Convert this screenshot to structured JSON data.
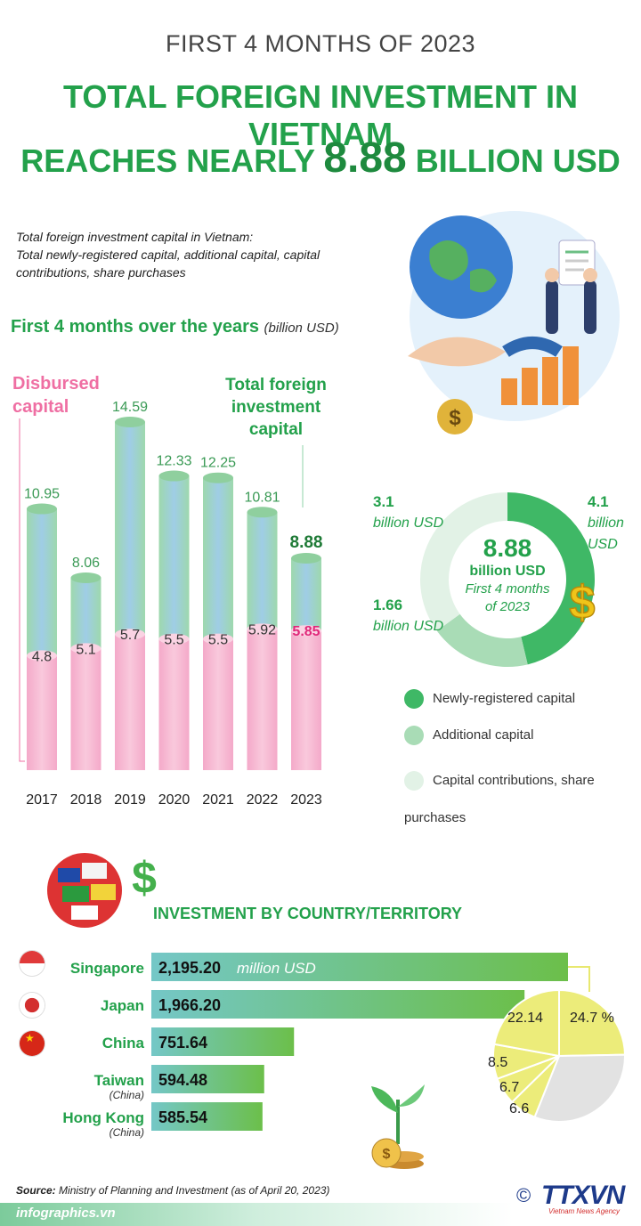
{
  "header": {
    "kicker": "FIRST 4 MONTHS OF 2023",
    "line1": "TOTAL FOREIGN INVESTMENT IN VIETNAM",
    "line2_pre": "REACHES NEARLY",
    "line2_num": "8.88",
    "line2_post": "BILLION USD"
  },
  "intro": {
    "line1": "Total foreign investment capital in Vietnam:",
    "line2": "Total newly-registered capital, additional capital, capital contributions, share purchases"
  },
  "section1": {
    "title": "First 4 months over the years",
    "unit": "(billion USD)"
  },
  "labels": {
    "disbursed": "Disbursed capital",
    "total": "Total foreign investment capital"
  },
  "chart_data": [
    {
      "type": "bar",
      "categories": [
        "2017",
        "2018",
        "2019",
        "2020",
        "2021",
        "2022",
        "2023"
      ],
      "series": [
        {
          "name": "Total foreign investment capital",
          "values": [
            10.95,
            8.06,
            14.59,
            12.33,
            12.25,
            10.81,
            8.88
          ]
        },
        {
          "name": "Disbursed capital",
          "values": [
            4.8,
            5.1,
            5.7,
            5.5,
            5.5,
            5.92,
            5.85
          ]
        }
      ],
      "colors": {
        "total": "#8fd3a8",
        "disbursed": "#f7b6d2",
        "highlight_total": "#1e7a36",
        "highlight_disbursed": "#e0287a"
      }
    },
    {
      "type": "pie",
      "labels": [
        "Newly-registered capital",
        "Additional capital",
        "Capital contributions, share purchases"
      ],
      "values": [
        4.1,
        1.66,
        3.1
      ],
      "value_labels": [
        "4.1",
        "1.66",
        "3.1"
      ],
      "value_unit": "billion USD",
      "center": {
        "value": "8.88",
        "unit": "billion USD",
        "note": "First 4 months of 2023"
      },
      "colors": [
        "#3fb866",
        "#a9dcb6",
        "#e2f2e6"
      ]
    },
    {
      "type": "bar",
      "title": "INVESTMENT BY COUNTRY/TERRITORY",
      "categories": [
        "Singapore",
        "Japan",
        "China",
        "Taiwan",
        "Hong Kong"
      ],
      "sublabels": [
        "",
        "",
        "",
        "(China)",
        "(China)"
      ],
      "values": [
        2195.2,
        1966.2,
        751.64,
        594.48,
        585.54
      ],
      "value_labels": [
        "2,195.20",
        "1,966.20",
        "751.64",
        "594.48",
        "585.54"
      ],
      "unit": "million USD"
    },
    {
      "type": "pie",
      "values": [
        24.7,
        6.6,
        6.7,
        8.5,
        22.14
      ],
      "value_labels": [
        "24.7 %",
        "6.6",
        "6.7",
        "8.5",
        "22.14"
      ],
      "colors": [
        "#ecec7a",
        "#e6e6e6",
        "#ecec7a",
        "#ecec7a",
        "#ecec7a"
      ]
    }
  ],
  "legend": [
    "Newly-registered capital",
    "Additional capital",
    "Capital contributions, share purchases"
  ],
  "source": {
    "label": "Source:",
    "text": "Ministry of Planning and Investment (as of April 20, 2023)"
  },
  "footer": {
    "site": "infographics.vn",
    "copyright": "©",
    "logo": "TTXVN",
    "logo_sub": "Vietnam News Agency"
  }
}
